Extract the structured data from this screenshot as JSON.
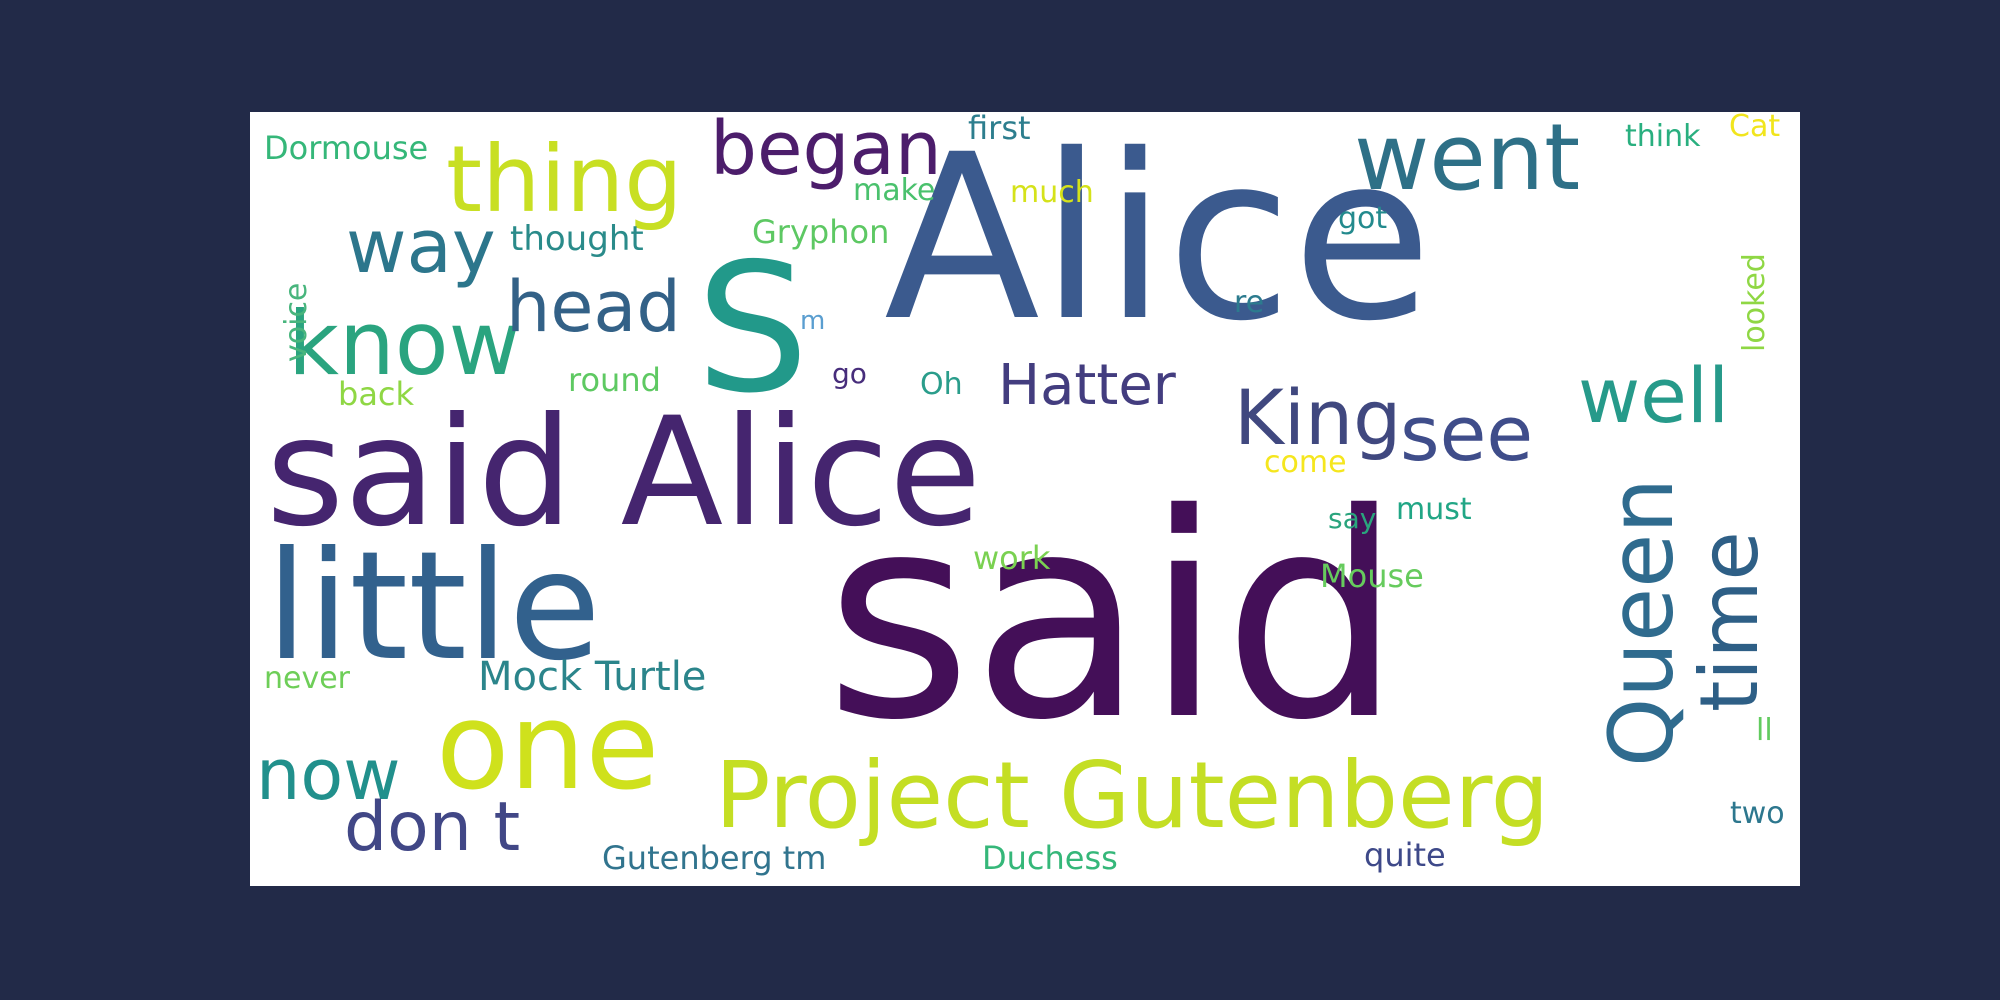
{
  "words": {
    "said_big": {
      "text": "said",
      "color": "#440F58"
    },
    "alice_big": {
      "text": "Alice",
      "color": "#3B5A8E"
    },
    "said_alice": {
      "text": "said Alice",
      "color": "#45256F"
    },
    "little": {
      "text": "little",
      "color": "#32618D"
    },
    "s": {
      "text": "S",
      "color": "#22998A"
    },
    "one": {
      "text": "one",
      "color": "#CFE11C"
    },
    "project_gutenberg": {
      "text": "Project Gutenberg",
      "color": "#C4DE24"
    },
    "thing": {
      "text": "thing",
      "color": "#C8DF23"
    },
    "went": {
      "text": "went",
      "color": "#2E7087"
    },
    "know": {
      "text": "know",
      "color": "#2AA47F"
    },
    "began": {
      "text": "began",
      "color": "#4C1D6B"
    },
    "way": {
      "text": "way",
      "color": "#2C768C"
    },
    "head": {
      "text": "head",
      "color": "#336187"
    },
    "king": {
      "text": "King",
      "color": "#40487F"
    },
    "see": {
      "text": "see",
      "color": "#3F4D8A"
    },
    "well": {
      "text": "well",
      "color": "#269A8A"
    },
    "hatter": {
      "text": "Hatter",
      "color": "#433D7F"
    },
    "queen": {
      "text": "Queen",
      "color": "#2F6B8E"
    },
    "time": {
      "text": "time",
      "color": "#2E5F86"
    },
    "now": {
      "text": "now",
      "color": "#21908C"
    },
    "dont": {
      "text": "don t",
      "color": "#414786"
    },
    "mock_turtle": {
      "text": "Mock Turtle",
      "color": "#2B858B"
    },
    "gutenberg_tm": {
      "text": "Gutenberg tm",
      "color": "#31748E"
    },
    "duchess": {
      "text": "Duchess",
      "color": "#35B779"
    },
    "quite": {
      "text": "quite",
      "color": "#3E4989"
    },
    "two": {
      "text": "two",
      "color": "#2D778E"
    },
    "dormouse": {
      "text": "Dormouse",
      "color": "#35B779"
    },
    "first": {
      "text": "first",
      "color": "#2D7E8E"
    },
    "think": {
      "text": "think",
      "color": "#29AF7F"
    },
    "cat": {
      "text": "Cat",
      "color": "#F1E51D"
    },
    "thought": {
      "text": "thought",
      "color": "#2A8B8A"
    },
    "gryphon": {
      "text": "Gryphon",
      "color": "#5DC863"
    },
    "make": {
      "text": "make",
      "color": "#4AC16D"
    },
    "much": {
      "text": "much",
      "color": "#D5E21A"
    },
    "got": {
      "text": "got",
      "color": "#238A8D"
    },
    "re": {
      "text": "re",
      "color": "#2C7B8E"
    },
    "go": {
      "text": "go",
      "color": "#472D7B"
    },
    "oh": {
      "text": "Oh",
      "color": "#2A9D8B"
    },
    "round": {
      "text": "round",
      "color": "#5EC962"
    },
    "back": {
      "text": "back",
      "color": "#8FD744"
    },
    "come": {
      "text": "come",
      "color": "#F5E61E"
    },
    "say": {
      "text": "say",
      "color": "#2AA47D"
    },
    "must": {
      "text": "must",
      "color": "#21A685"
    },
    "work": {
      "text": "work",
      "color": "#7AD151"
    },
    "mouse": {
      "text": "Mouse",
      "color": "#66CB5D"
    },
    "never": {
      "text": "never",
      "color": "#6ECE58"
    },
    "ll": {
      "text": "ll",
      "color": "#62CB5F"
    },
    "m": {
      "text": "m",
      "color": "#5A9ED0"
    },
    "voice": {
      "text": "voice",
      "color": "#48B57D"
    },
    "looked": {
      "text": "looked",
      "color": "#8FD744"
    }
  }
}
